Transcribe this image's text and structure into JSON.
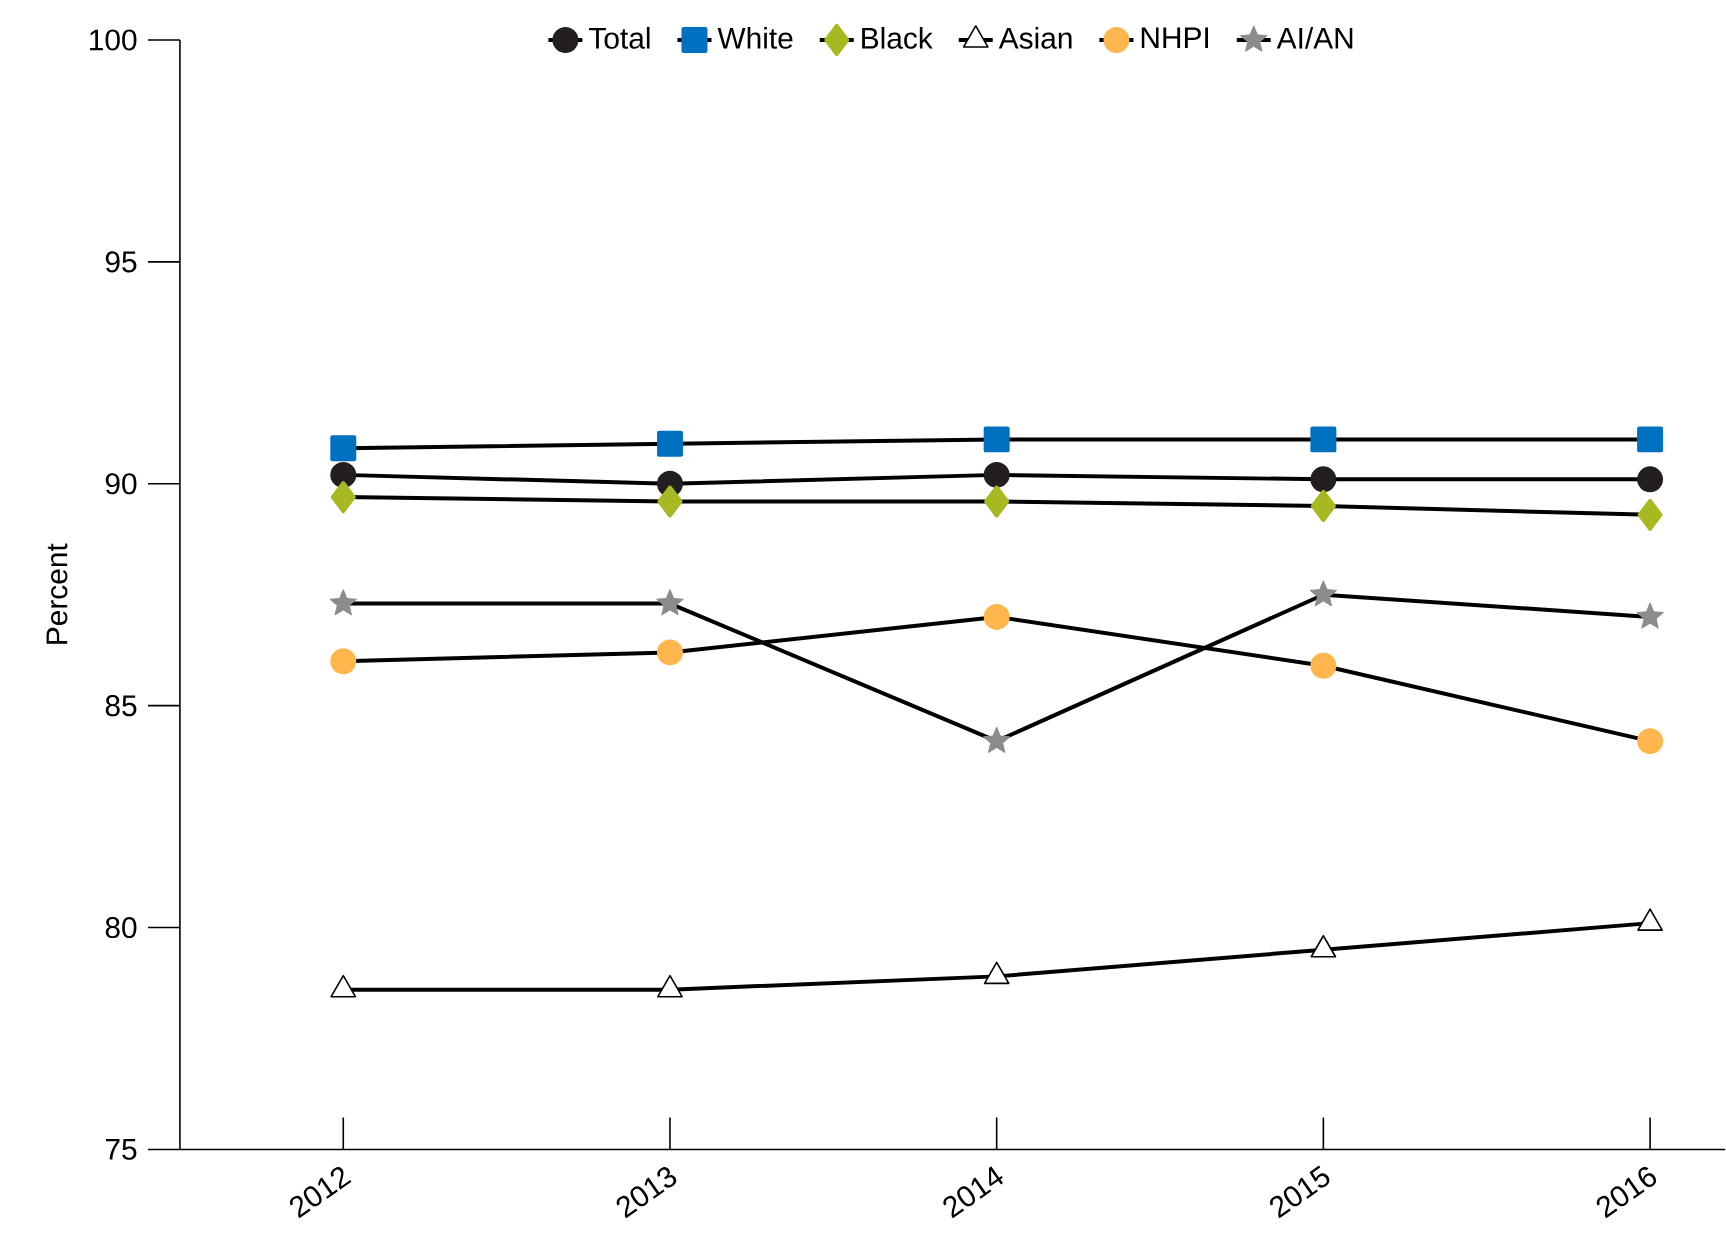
{
  "chart_data": {
    "type": "line",
    "ylabel": "Percent",
    "x": [
      2012,
      2013,
      2014,
      2015,
      2016
    ],
    "xlim": [
      2011.5,
      2016.23
    ],
    "ylim": [
      75,
      100
    ],
    "xticks": [
      2012,
      2013,
      2014,
      2015,
      2016
    ],
    "yticks": [
      75,
      80,
      85,
      90,
      95,
      100
    ],
    "legend": "top",
    "grid": false,
    "series": [
      {
        "name": "Total",
        "color": "#231f20",
        "marker": "circle",
        "values": [
          90.2,
          90.0,
          90.2,
          90.1,
          90.1
        ]
      },
      {
        "name": "White",
        "color": "#0070c0",
        "marker": "square",
        "values": [
          90.8,
          90.9,
          91.0,
          91.0,
          91.0
        ]
      },
      {
        "name": "Black",
        "color": "#a8b820",
        "marker": "diamond",
        "values": [
          89.7,
          89.6,
          89.6,
          89.5,
          89.3
        ]
      },
      {
        "name": "Asian",
        "color": "#ffffff",
        "marker": "triangle",
        "values": [
          78.6,
          78.6,
          78.9,
          79.5,
          80.1
        ]
      },
      {
        "name": "NHPI",
        "color": "#ffb74d",
        "marker": "circle",
        "values": [
          86.0,
          86.2,
          87.0,
          85.9,
          84.2
        ]
      },
      {
        "name": "AI/AN",
        "color": "#8c8c8c",
        "marker": "star",
        "values": [
          87.3,
          87.3,
          84.2,
          87.5,
          87.0
        ]
      }
    ]
  }
}
